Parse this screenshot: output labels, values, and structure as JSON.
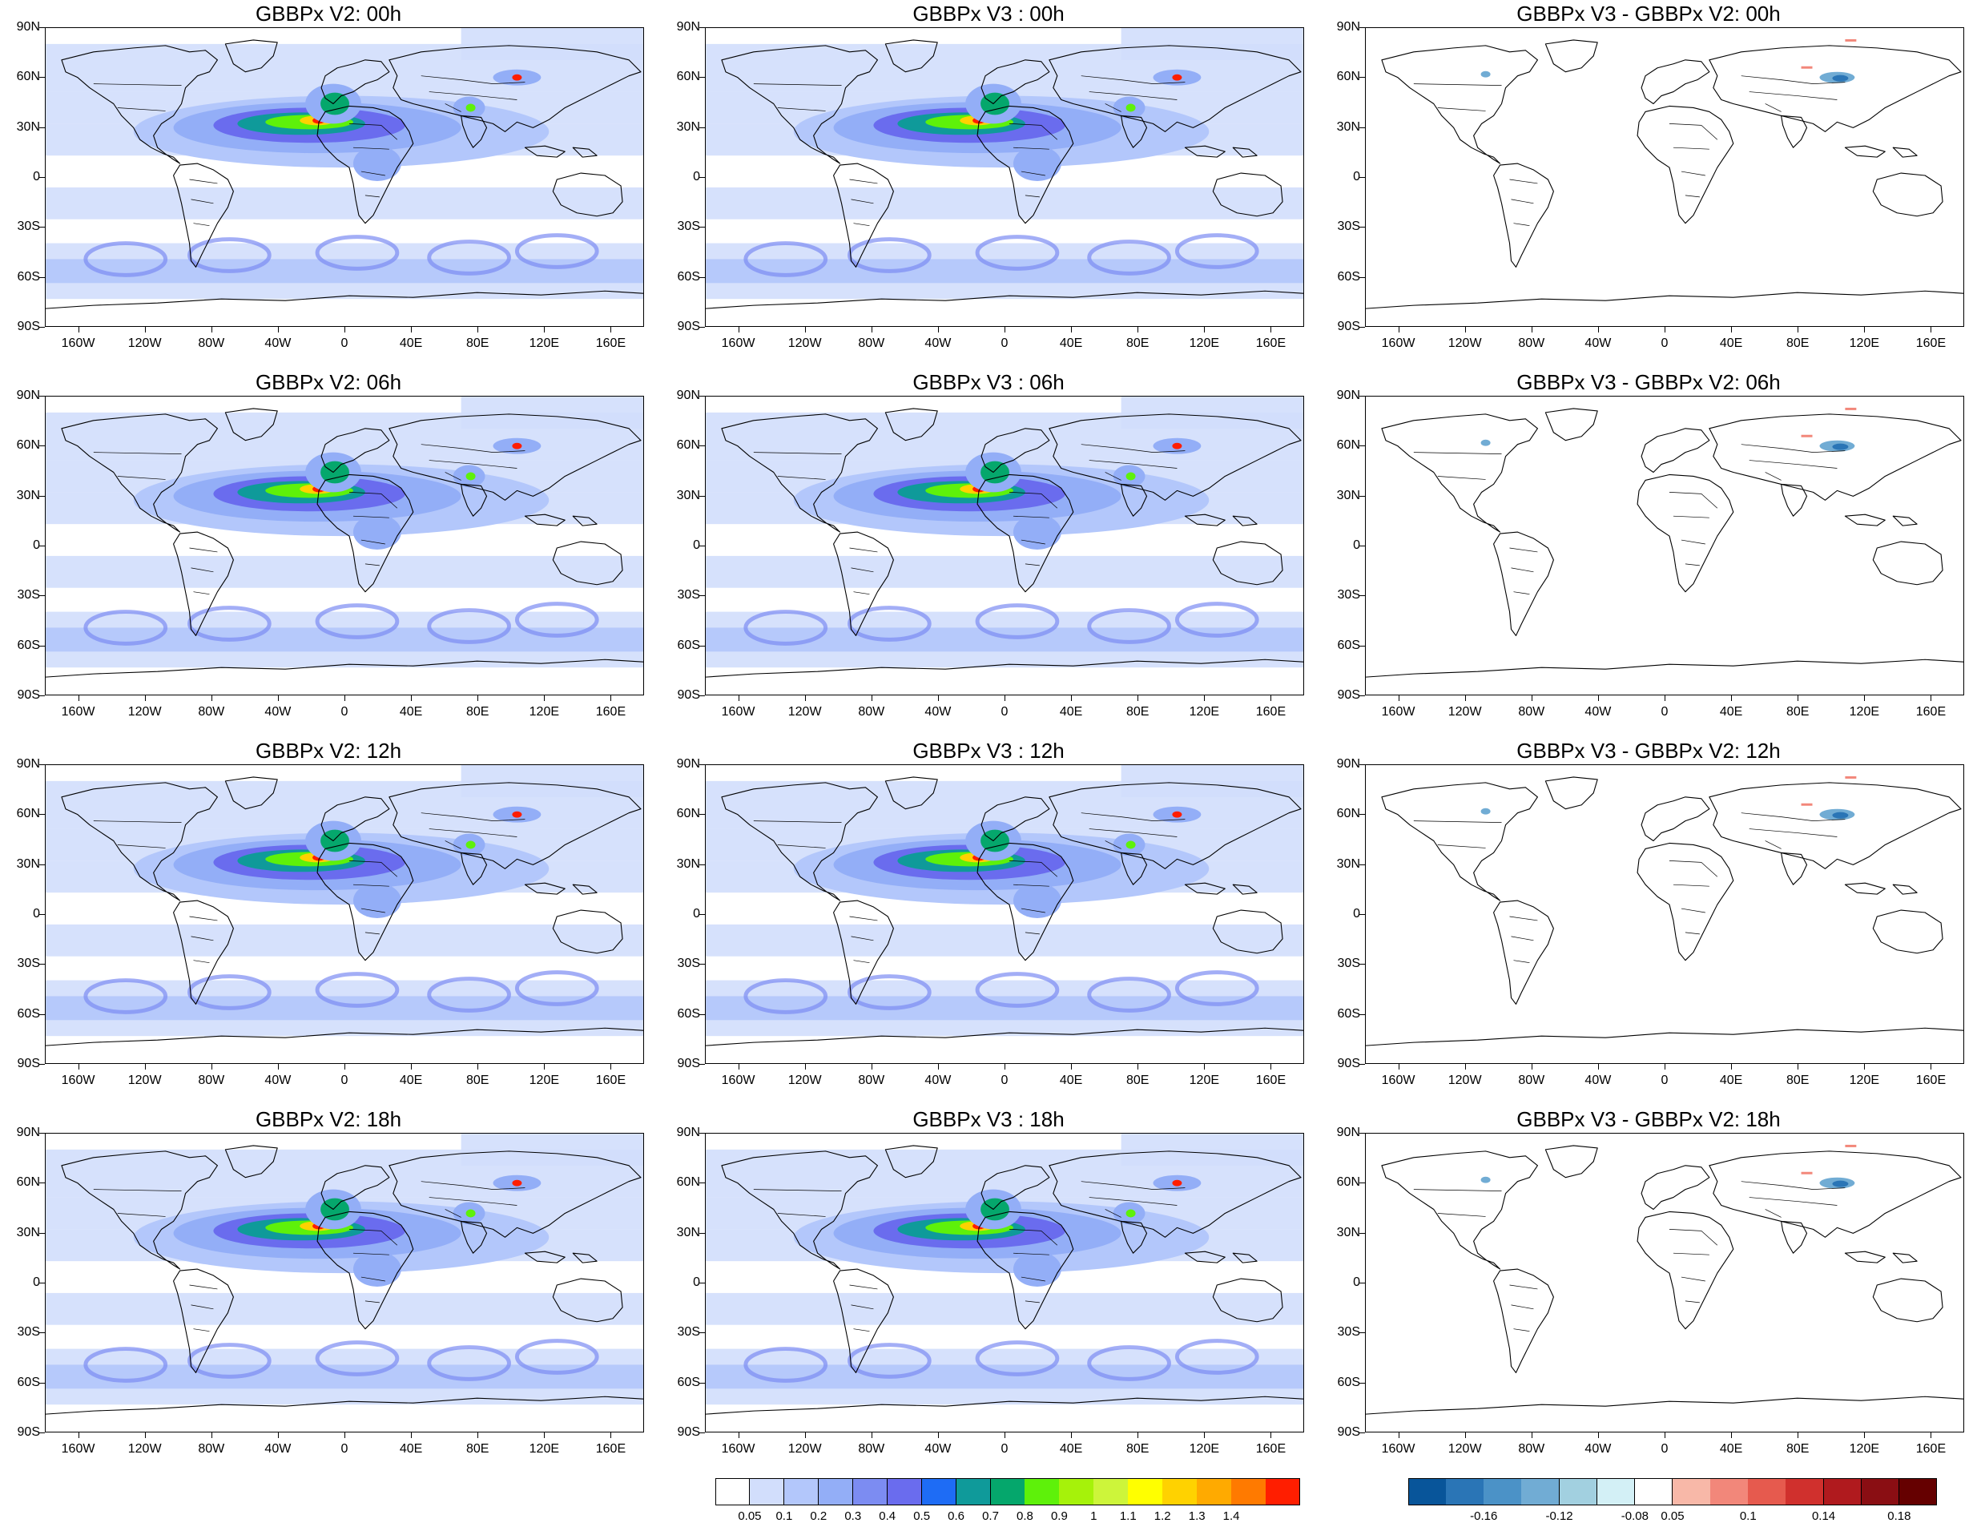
{
  "panels": [
    {
      "title": "GBBPx V2: 00h",
      "kind": "aod"
    },
    {
      "title": "GBBPx V3 : 00h",
      "kind": "aod"
    },
    {
      "title": "GBBPx V3 - GBBPx V2: 00h",
      "kind": "diff"
    },
    {
      "title": "GBBPx V2: 06h",
      "kind": "aod"
    },
    {
      "title": "GBBPx V3 : 06h",
      "kind": "aod"
    },
    {
      "title": "GBBPx V3 - GBBPx V2: 06h",
      "kind": "diff"
    },
    {
      "title": "GBBPx V2: 12h",
      "kind": "aod"
    },
    {
      "title": "GBBPx V3 : 12h",
      "kind": "aod"
    },
    {
      "title": "GBBPx V3 - GBBPx V2: 12h",
      "kind": "diff"
    },
    {
      "title": "GBBPx V2: 18h",
      "kind": "aod"
    },
    {
      "title": "GBBPx V3 : 18h",
      "kind": "aod"
    },
    {
      "title": "GBBPx V3 - GBBPx V2: 18h",
      "kind": "diff"
    }
  ],
  "lat_labels": [
    "90N",
    "60N",
    "30N",
    "0",
    "30S",
    "60S",
    "90S"
  ],
  "lon_labels": [
    "160W",
    "120W",
    "80W",
    "40W",
    "0",
    "40E",
    "80E",
    "120E",
    "160E"
  ],
  "colorbar_main": {
    "colors": [
      "#ffffff",
      "#d2defc",
      "#b3c7fb",
      "#93aef7",
      "#7c8cf2",
      "#6a6cee",
      "#1e6cf5",
      "#0f9a9a",
      "#05a76c",
      "#5ef10a",
      "#a6f20a",
      "#cdf53a",
      "#ffff00",
      "#ffd200",
      "#ffaa00",
      "#ff7a00",
      "#ff1e00"
    ],
    "labels": [
      "0.05",
      "0.1",
      "0.2",
      "0.3",
      "0.4",
      "0.5",
      "0.6",
      "0.7",
      "0.8",
      "0.9",
      "1",
      "1.1",
      "1.2",
      "1.3",
      "1.4"
    ]
  },
  "colorbar_diff": {
    "colors": [
      "#08559a",
      "#2a75b6",
      "#4b92c7",
      "#71acd4",
      "#a2d0e0",
      "#d3f0f6",
      "#ffffff",
      "#f8b8a8",
      "#f2877a",
      "#e65a4e",
      "#d0302d",
      "#b01a1e",
      "#8a0e13",
      "#650000"
    ],
    "labels": [
      "-0.16",
      "-0.12",
      "-0.08",
      "0.05",
      "0.1",
      "0.14",
      "0.18"
    ]
  }
}
